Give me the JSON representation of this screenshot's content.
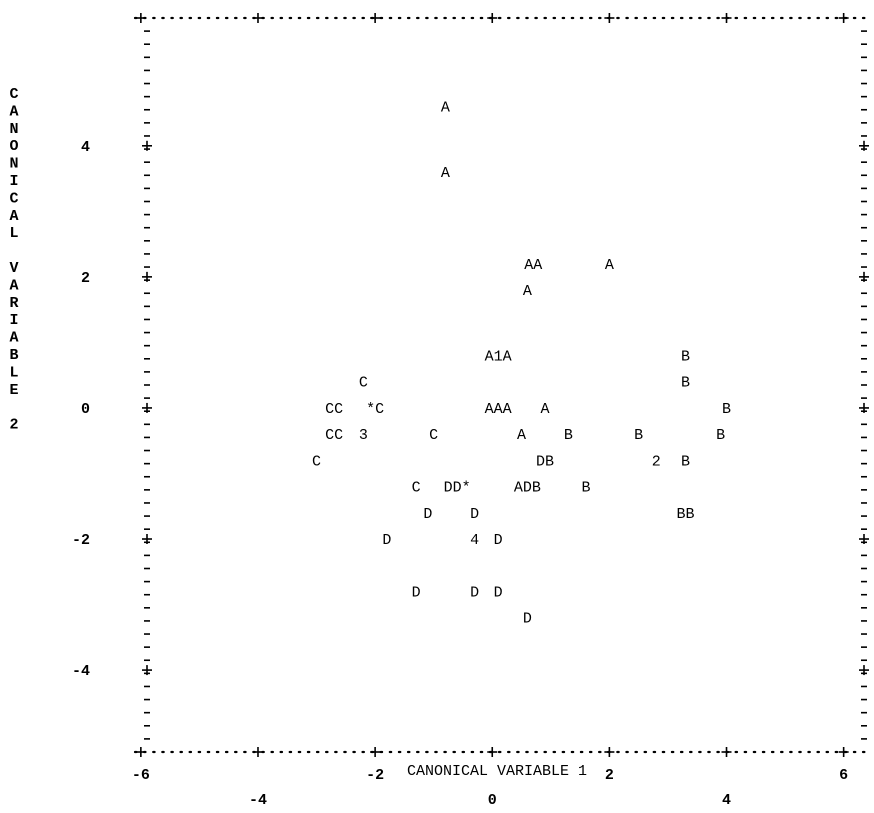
{
  "chart_data": {
    "type": "scatter",
    "title": "",
    "xlabel": "CANONICAL VARIABLE  1",
    "ylabel": "CANONICAL VARIABLE 2",
    "xlim": [
      -6.1,
      6.45
    ],
    "ylim": [
      -5.25,
      5.95
    ],
    "x_ticks": [
      -6,
      -4,
      -2,
      0,
      2,
      4,
      6
    ],
    "y_ticks": [
      4,
      2,
      0,
      -2,
      -4
    ],
    "grid": false,
    "legend": "none",
    "points": [
      {
        "x": -0.8,
        "y": 4.6,
        "label": "A"
      },
      {
        "x": -0.8,
        "y": 3.6,
        "label": "A"
      },
      {
        "x": 0.7,
        "y": 2.2,
        "label": "AA"
      },
      {
        "x": 2.0,
        "y": 2.2,
        "label": "A"
      },
      {
        "x": 0.6,
        "y": 1.8,
        "label": "A"
      },
      {
        "x": 0.1,
        "y": 0.8,
        "label": "A1A"
      },
      {
        "x": 3.3,
        "y": 0.8,
        "label": "B"
      },
      {
        "x": -2.2,
        "y": 0.4,
        "label": "C"
      },
      {
        "x": 3.3,
        "y": 0.4,
        "label": "B"
      },
      {
        "x": -2.7,
        "y": 0.0,
        "label": "CC"
      },
      {
        "x": -2.0,
        "y": 0.0,
        "label": "*C"
      },
      {
        "x": 0.1,
        "y": 0.0,
        "label": "AAA"
      },
      {
        "x": 0.9,
        "y": 0.0,
        "label": "A"
      },
      {
        "x": 4.0,
        "y": 0.0,
        "label": "B"
      },
      {
        "x": -2.7,
        "y": -0.4,
        "label": "CC"
      },
      {
        "x": -2.2,
        "y": -0.4,
        "label": "3"
      },
      {
        "x": -1.0,
        "y": -0.4,
        "label": "C"
      },
      {
        "x": 0.5,
        "y": -0.4,
        "label": "A"
      },
      {
        "x": 1.3,
        "y": -0.4,
        "label": "B"
      },
      {
        "x": 2.5,
        "y": -0.4,
        "label": "B"
      },
      {
        "x": 3.9,
        "y": -0.4,
        "label": "B"
      },
      {
        "x": -3.0,
        "y": -0.8,
        "label": "C"
      },
      {
        "x": 0.9,
        "y": -0.8,
        "label": "DB"
      },
      {
        "x": 2.8,
        "y": -0.8,
        "label": "2"
      },
      {
        "x": 3.3,
        "y": -0.8,
        "label": "B"
      },
      {
        "x": -1.3,
        "y": -1.2,
        "label": "C"
      },
      {
        "x": -0.6,
        "y": -1.2,
        "label": "DD*"
      },
      {
        "x": 0.6,
        "y": -1.2,
        "label": "ADB"
      },
      {
        "x": 1.6,
        "y": -1.2,
        "label": "B"
      },
      {
        "x": -1.1,
        "y": -1.6,
        "label": "D"
      },
      {
        "x": -0.3,
        "y": -1.6,
        "label": "D"
      },
      {
        "x": 3.3,
        "y": -1.6,
        "label": "BB"
      },
      {
        "x": -1.8,
        "y": -2.0,
        "label": "D"
      },
      {
        "x": -0.3,
        "y": -2.0,
        "label": "4"
      },
      {
        "x": 0.1,
        "y": -2.0,
        "label": "D"
      },
      {
        "x": -1.3,
        "y": -2.8,
        "label": "D"
      },
      {
        "x": -0.3,
        "y": -2.8,
        "label": "D"
      },
      {
        "x": 0.1,
        "y": -2.8,
        "label": "D"
      },
      {
        "x": 0.6,
        "y": -3.2,
        "label": "D"
      }
    ]
  }
}
